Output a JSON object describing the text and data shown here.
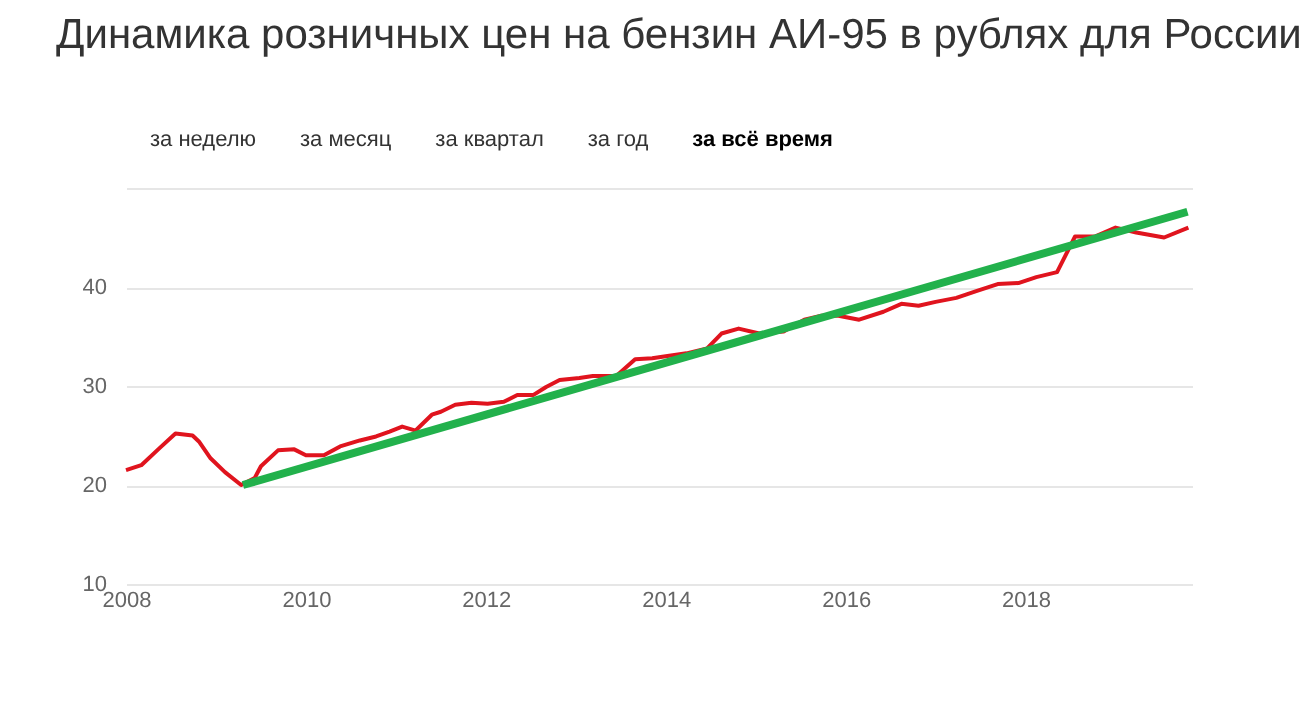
{
  "chart_data": {
    "type": "line",
    "title": "Динамика розничных цен на бензин АИ-95 в рублях для России",
    "annotations": [
      "за неделю",
      "за месяц",
      "за квартал",
      "за год",
      "за всё время"
    ],
    "x": [
      2008.0,
      2008.17,
      2008.37,
      2008.55,
      2008.74,
      2008.81,
      2008.94,
      2009.1,
      2009.28,
      2009.43,
      2009.5,
      2009.69,
      2009.87,
      2010.0,
      2010.2,
      2010.38,
      2010.6,
      2010.78,
      2010.93,
      2011.07,
      2011.22,
      2011.4,
      2011.5,
      2011.66,
      2011.84,
      2012.02,
      2012.2,
      2012.35,
      2012.53,
      2012.67,
      2012.82,
      2013.04,
      2013.19,
      2013.45,
      2013.66,
      2013.85,
      2014.0,
      2014.23,
      2014.46,
      2014.62,
      2014.81,
      2015.04,
      2015.31,
      2015.54,
      2015.73,
      2015.92,
      2016.15,
      2016.42,
      2016.62,
      2016.81,
      2017.0,
      2017.23,
      2017.46,
      2017.69,
      2017.92,
      2018.12,
      2018.35,
      2018.55,
      2018.77,
      2019.0,
      2019.23,
      2019.54,
      2019.81
    ],
    "series": [
      {
        "color": "#e0141e",
        "values": [
          21.5,
          22.0,
          23.7,
          25.2,
          25.0,
          24.4,
          22.7,
          21.3,
          20.0,
          20.7,
          21.9,
          23.5,
          23.6,
          23.0,
          23.0,
          23.9,
          24.5,
          24.9,
          25.4,
          25.9,
          25.5,
          27.1,
          27.4,
          28.1,
          28.3,
          28.2,
          28.4,
          29.1,
          29.1,
          29.9,
          30.6,
          30.8,
          31.0,
          31.0,
          32.7,
          32.8,
          33.0,
          33.3,
          33.8,
          35.3,
          35.8,
          35.3,
          35.5,
          36.7,
          37.1,
          37.1,
          36.7,
          37.5,
          38.3,
          38.1,
          38.5,
          38.9,
          39.6,
          40.3,
          40.4,
          41.0,
          41.5,
          45.1,
          45.1,
          46.0,
          45.5,
          45.0,
          46.0
        ]
      },
      {
        "type": "line",
        "color": "#22b14c",
        "x": [
          2009.3,
          2019.8
        ],
        "values": [
          20,
          47.6
        ]
      }
    ],
    "xlim": [
      2008,
      2019.85
    ],
    "xticks": [
      2008,
      2010,
      2012,
      2014,
      2016,
      2018
    ],
    "ylim": [
      10,
      50
    ],
    "yticks": [
      10,
      20,
      30,
      40,
      {
        "value": 50,
        "label": null
      }
    ],
    "grid": "y",
    "marker": "none",
    "line_style": "solid"
  }
}
